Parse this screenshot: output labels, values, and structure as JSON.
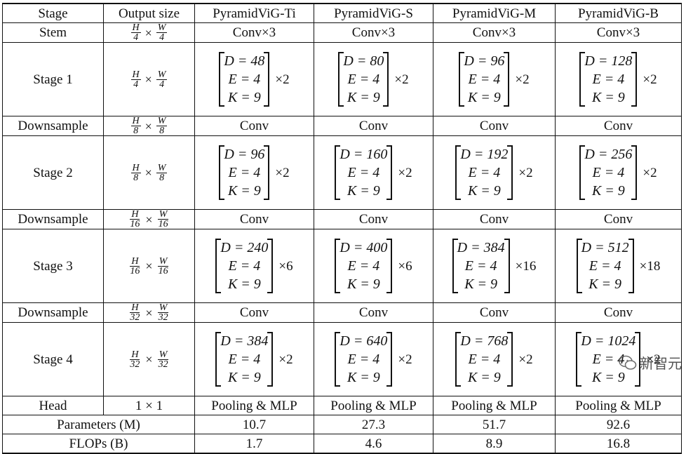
{
  "header": [
    "Stage",
    "Output size",
    "PyramidViG-Ti",
    "PyramidViG-S",
    "PyramidViG-M",
    "PyramidViG-B"
  ],
  "stem": {
    "label": "Stem",
    "size": {
      "num_h": "H",
      "den_h": "4",
      "num_w": "W",
      "den_w": "4"
    },
    "value": "Conv×3"
  },
  "downsample_label": "Downsample",
  "conv_label": "Conv",
  "ds1_size": {
    "num_h": "H",
    "den_h": "8",
    "num_w": "W",
    "den_w": "8"
  },
  "ds2_size": {
    "num_h": "H",
    "den_h": "16",
    "num_w": "W",
    "den_w": "16"
  },
  "ds3_size": {
    "num_h": "H",
    "den_h": "32",
    "num_w": "W",
    "den_w": "32"
  },
  "stages": [
    {
      "label": "Stage 1",
      "size": {
        "num_h": "H",
        "den_h": "4",
        "num_w": "W",
        "den_w": "4"
      },
      "models": [
        {
          "D": "D = 48",
          "E": "E = 4",
          "K": "K = 9",
          "mult": "×2"
        },
        {
          "D": "D = 80",
          "E": "E = 4",
          "K": "K = 9",
          "mult": "×2"
        },
        {
          "D": "D = 96",
          "E": "E = 4",
          "K": "K = 9",
          "mult": "×2"
        },
        {
          "D": "D = 128",
          "E": "E = 4",
          "K": "K = 9",
          "mult": "×2"
        }
      ]
    },
    {
      "label": "Stage 2",
      "size": {
        "num_h": "H",
        "den_h": "8",
        "num_w": "W",
        "den_w": "8"
      },
      "models": [
        {
          "D": "D = 96",
          "E": "E = 4",
          "K": "K = 9",
          "mult": "×2"
        },
        {
          "D": "D = 160",
          "E": "E = 4",
          "K": "K = 9",
          "mult": "×2"
        },
        {
          "D": "D = 192",
          "E": "E = 4",
          "K": "K = 9",
          "mult": "×2"
        },
        {
          "D": "D = 256",
          "E": "E = 4",
          "K": "K = 9",
          "mult": "×2"
        }
      ]
    },
    {
      "label": "Stage 3",
      "size": {
        "num_h": "H",
        "den_h": "16",
        "num_w": "W",
        "den_w": "16"
      },
      "models": [
        {
          "D": "D = 240",
          "E": "E = 4",
          "K": "K = 9",
          "mult": "×6"
        },
        {
          "D": "D = 400",
          "E": "E = 4",
          "K": "K = 9",
          "mult": "×6"
        },
        {
          "D": "D = 384",
          "E": "E = 4",
          "K": "K = 9",
          "mult": "×16"
        },
        {
          "D": "D = 512",
          "E": "E = 4",
          "K": "K = 9",
          "mult": "×18"
        }
      ]
    },
    {
      "label": "Stage 4",
      "size": {
        "num_h": "H",
        "den_h": "32",
        "num_w": "W",
        "den_w": "32"
      },
      "models": [
        {
          "D": "D = 384",
          "E": "E = 4",
          "K": "K = 9",
          "mult": "×2"
        },
        {
          "D": "D = 640",
          "E": "E = 4",
          "K": "K = 9",
          "mult": "×2"
        },
        {
          "D": "D = 768",
          "E": "E = 4",
          "K": "K = 9",
          "mult": "×2"
        },
        {
          "D": "D = 1024",
          "E": "E = 4",
          "K": "K = 9",
          "mult": "×2"
        }
      ]
    }
  ],
  "head": {
    "label": "Head",
    "size": "1 × 1",
    "value": "Pooling & MLP"
  },
  "params": {
    "label": "Parameters (M)",
    "values": [
      "10.7",
      "27.3",
      "51.7",
      "92.6"
    ]
  },
  "flops": {
    "label": "FLOPs (B)",
    "values": [
      "1.7",
      "4.6",
      "8.9",
      "16.8"
    ]
  },
  "watermark": "新智元"
}
